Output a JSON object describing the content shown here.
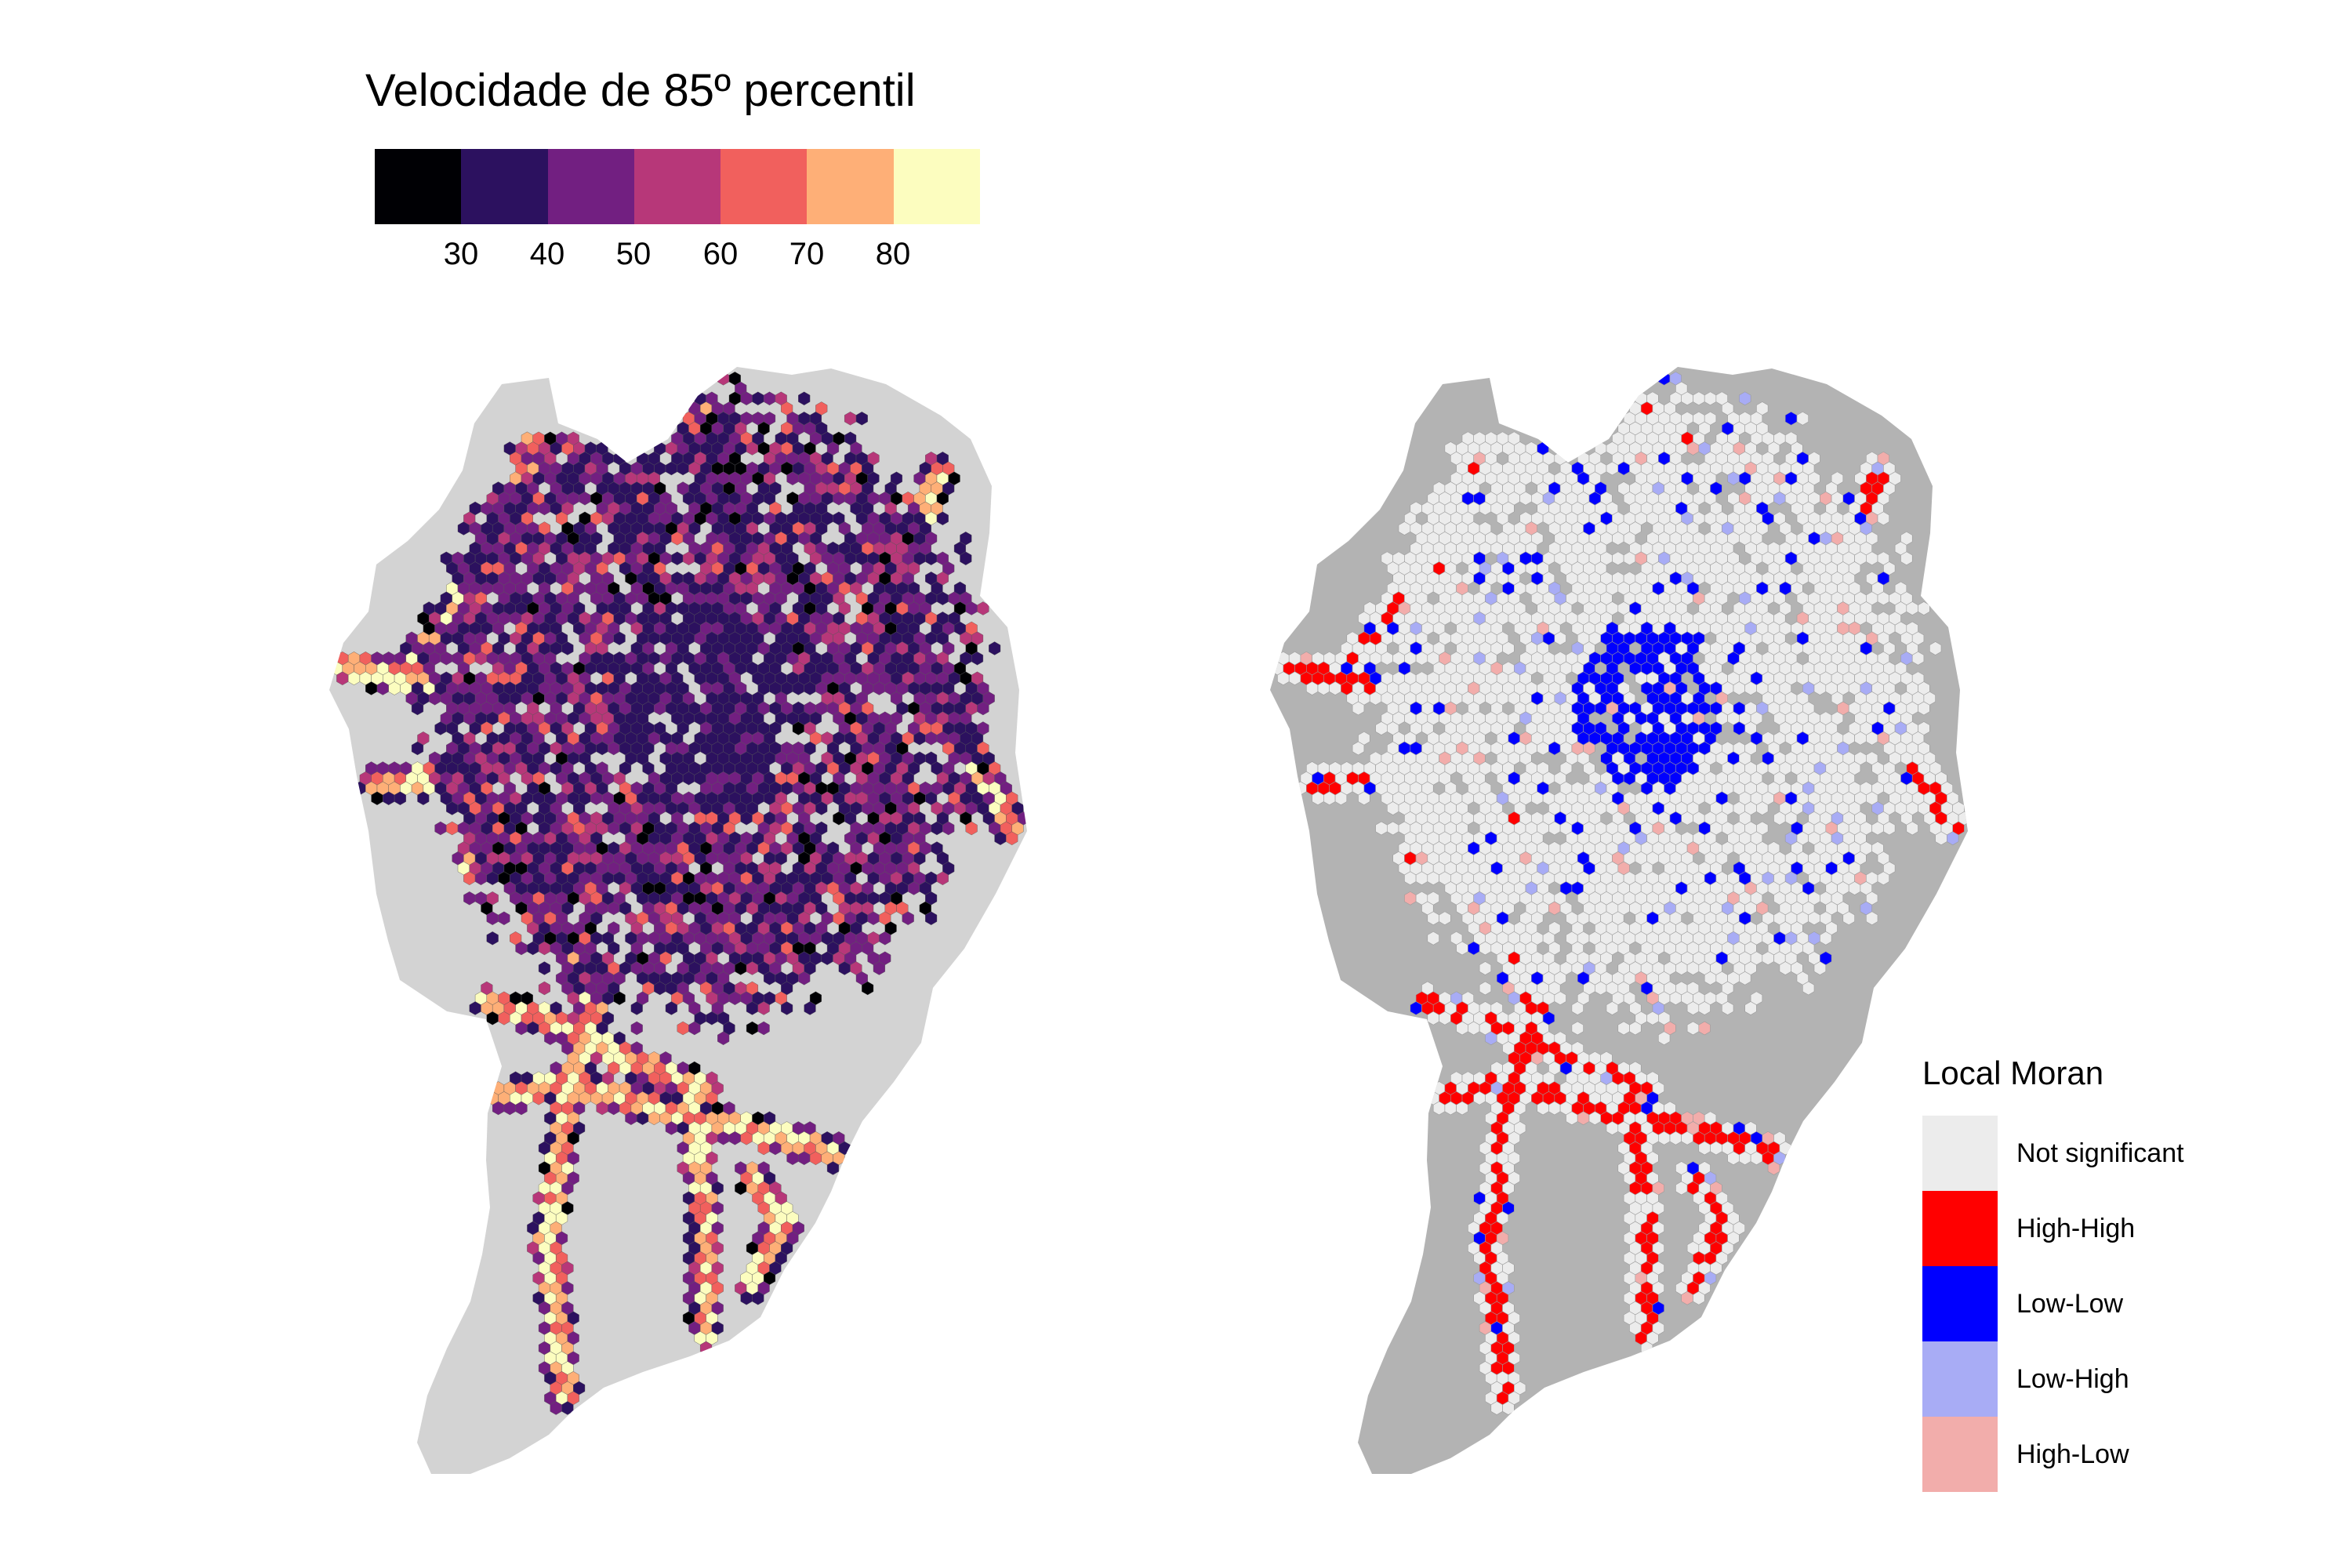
{
  "speed_legend": {
    "title": "Velocidade de 85º percentil",
    "colors": [
      "#000004",
      "#2c115f",
      "#721f81",
      "#b73779",
      "#f1605d",
      "#feaf77",
      "#fcfdbf"
    ],
    "tick_labels": [
      "30",
      "40",
      "50",
      "60",
      "70",
      "80"
    ]
  },
  "moran_legend": {
    "title": "Local Moran",
    "items": [
      {
        "label": "Not significant",
        "color": "#ececec"
      },
      {
        "label": "High-High",
        "color": "#ff0000"
      },
      {
        "label": "Low-Low",
        "color": "#0000ff"
      },
      {
        "label": "Low-High",
        "color": "#a8acf5"
      },
      {
        "label": "High-Low",
        "color": "#f2adab"
      }
    ]
  },
  "map_colors": {
    "left_background": "#d3d3d3",
    "right_background": "#b3b3b3",
    "hex_stroke": "#9a9a9a"
  }
}
